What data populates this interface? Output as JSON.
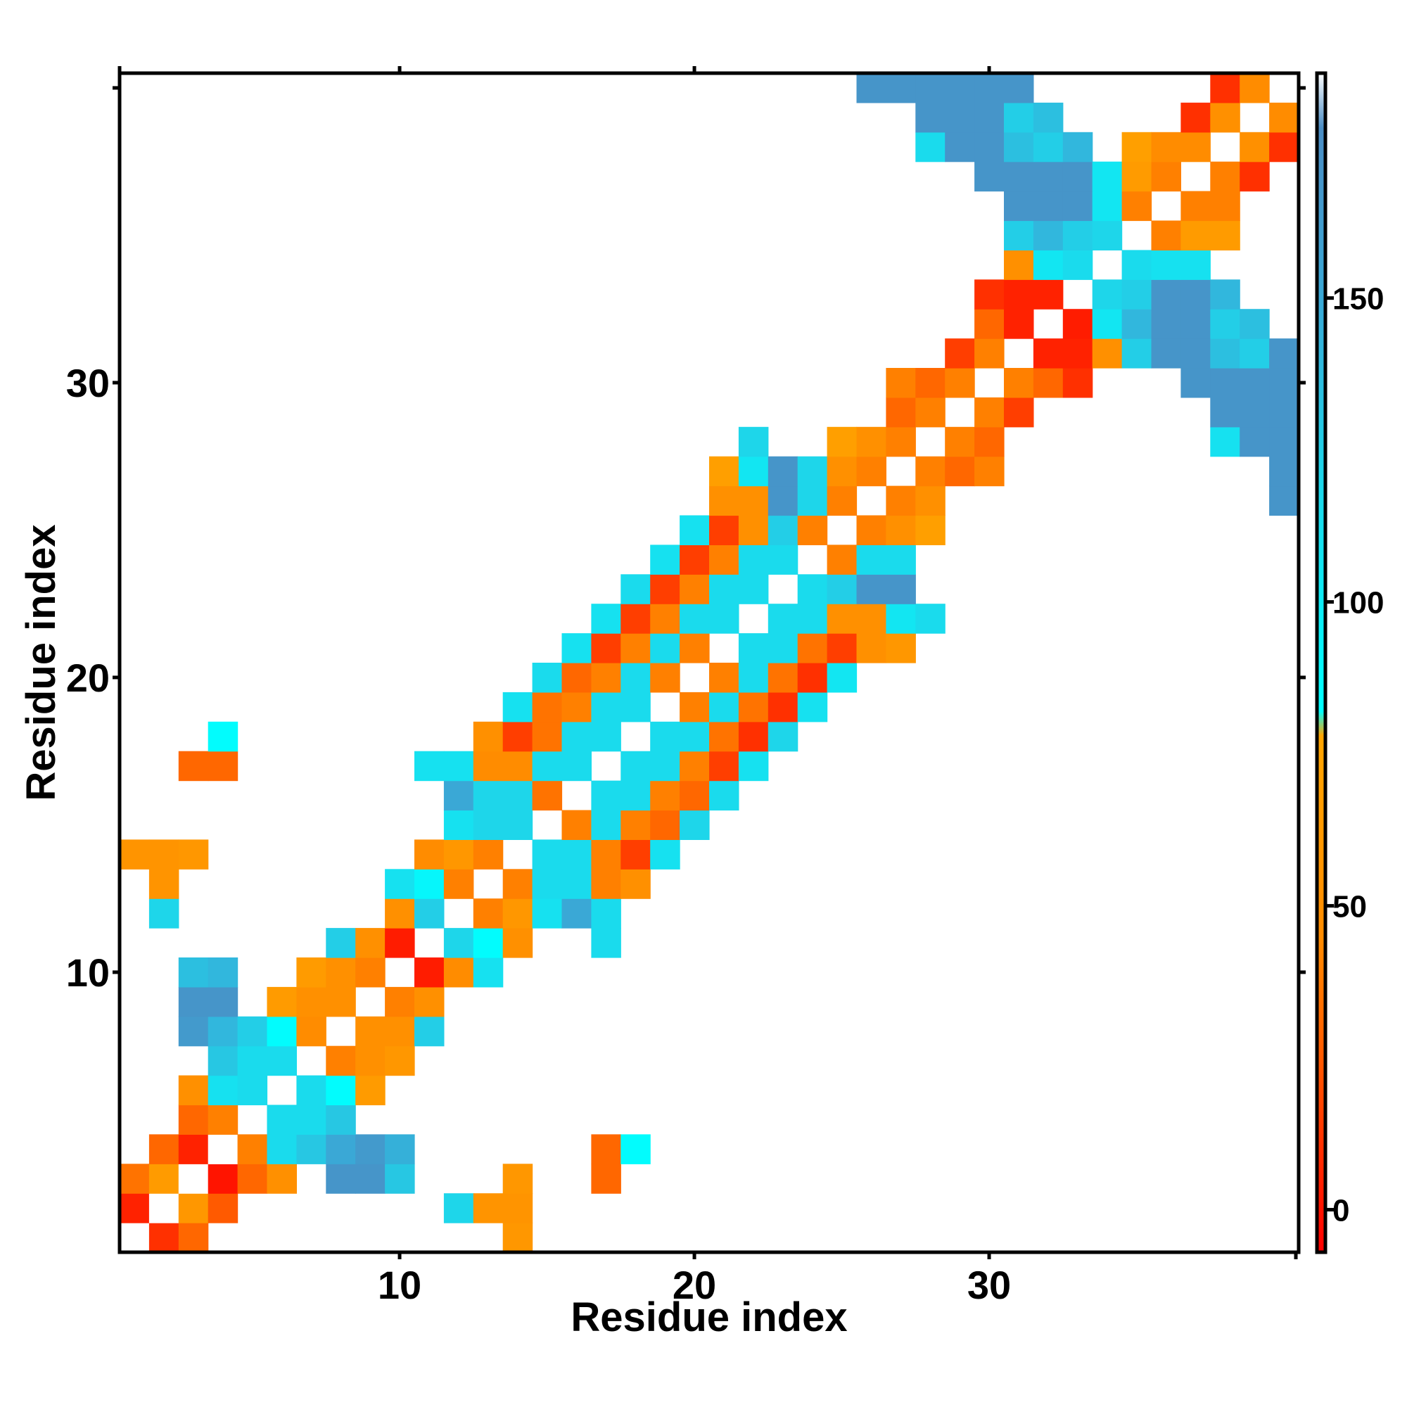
{
  "chart_data": {
    "type": "heatmap",
    "title": "",
    "xlabel": "Residue index",
    "ylabel": "Residue index",
    "xlim": [
      0.5,
      40.5
    ],
    "ylim": [
      0.5,
      40.5
    ],
    "x_ticks": [
      10,
      20,
      30
    ],
    "y_ticks": [
      10,
      20,
      30
    ],
    "colorbar": {
      "ticks": [
        0,
        50,
        100,
        150
      ],
      "range": [
        -7,
        187
      ],
      "stops": [
        {
          "value": -7,
          "color": "#ff0000"
        },
        {
          "value": 25,
          "color": "#ff5a00"
        },
        {
          "value": 45,
          "color": "#ff8c00"
        },
        {
          "value": 78,
          "color": "#ffa500"
        },
        {
          "value": 82,
          "color": "#00ffff"
        },
        {
          "value": 120,
          "color": "#1ed6ea"
        },
        {
          "value": 150,
          "color": "#3aa8d6"
        },
        {
          "value": 178,
          "color": "#4b8dc4"
        },
        {
          "value": 187,
          "color": "#ffffff"
        }
      ]
    },
    "empty_value_note": "",
    "cells": [
      [
        1,
        1,
        -1
      ],
      [
        2,
        1,
        10
      ],
      [
        3,
        1,
        30
      ],
      [
        14,
        1,
        60
      ],
      [
        1,
        2,
        5
      ],
      [
        2,
        2,
        -1
      ],
      [
        3,
        2,
        60
      ],
      [
        4,
        2,
        25
      ],
      [
        12,
        2,
        120
      ],
      [
        13,
        2,
        55
      ],
      [
        14,
        2,
        55
      ],
      [
        1,
        3,
        35
      ],
      [
        2,
        3,
        65
      ],
      [
        3,
        3,
        -1
      ],
      [
        4,
        3,
        0
      ],
      [
        5,
        3,
        30
      ],
      [
        6,
        3,
        50
      ],
      [
        8,
        3,
        170
      ],
      [
        9,
        3,
        170
      ],
      [
        10,
        3,
        130
      ],
      [
        14,
        3,
        60
      ],
      [
        17,
        3,
        30
      ],
      [
        2,
        4,
        30
      ],
      [
        3,
        4,
        5
      ],
      [
        4,
        4,
        -1
      ],
      [
        5,
        4,
        40
      ],
      [
        6,
        4,
        115
      ],
      [
        7,
        4,
        130
      ],
      [
        8,
        4,
        150
      ],
      [
        9,
        4,
        165
      ],
      [
        10,
        4,
        145
      ],
      [
        17,
        4,
        30
      ],
      [
        18,
        4,
        85
      ],
      [
        3,
        5,
        30
      ],
      [
        4,
        5,
        40
      ],
      [
        6,
        5,
        115
      ],
      [
        7,
        5,
        115
      ],
      [
        8,
        5,
        130
      ],
      [
        3,
        6,
        50
      ],
      [
        4,
        6,
        110
      ],
      [
        5,
        6,
        115
      ],
      [
        7,
        6,
        115
      ],
      [
        8,
        6,
        85
      ],
      [
        9,
        6,
        65
      ],
      [
        4,
        7,
        130
      ],
      [
        5,
        7,
        115
      ],
      [
        6,
        7,
        115
      ],
      [
        8,
        7,
        40
      ],
      [
        9,
        7,
        50
      ],
      [
        10,
        7,
        60
      ],
      [
        3,
        8,
        165
      ],
      [
        4,
        8,
        140
      ],
      [
        5,
        8,
        125
      ],
      [
        6,
        8,
        85
      ],
      [
        7,
        8,
        45
      ],
      [
        9,
        8,
        50
      ],
      [
        10,
        8,
        50
      ],
      [
        11,
        8,
        125
      ],
      [
        3,
        9,
        170
      ],
      [
        4,
        9,
        170
      ],
      [
        6,
        9,
        65
      ],
      [
        7,
        9,
        50
      ],
      [
        8,
        9,
        50
      ],
      [
        10,
        9,
        40
      ],
      [
        11,
        9,
        50
      ],
      [
        3,
        10,
        135
      ],
      [
        4,
        10,
        140
      ],
      [
        7,
        10,
        65
      ],
      [
        8,
        10,
        50
      ],
      [
        9,
        10,
        40
      ],
      [
        11,
        10,
        3
      ],
      [
        12,
        10,
        45
      ],
      [
        13,
        10,
        110
      ],
      [
        8,
        11,
        125
      ],
      [
        9,
        11,
        50
      ],
      [
        10,
        11,
        3
      ],
      [
        12,
        11,
        120
      ],
      [
        13,
        11,
        85
      ],
      [
        14,
        11,
        50
      ],
      [
        17,
        11,
        115
      ],
      [
        2,
        12,
        120
      ],
      [
        10,
        12,
        50
      ],
      [
        11,
        12,
        125
      ],
      [
        13,
        12,
        40
      ],
      [
        14,
        12,
        60
      ],
      [
        15,
        12,
        110
      ],
      [
        16,
        12,
        150
      ],
      [
        17,
        12,
        115
      ],
      [
        2,
        13,
        55
      ],
      [
        10,
        13,
        110
      ],
      [
        11,
        13,
        90
      ],
      [
        12,
        13,
        40
      ],
      [
        14,
        13,
        40
      ],
      [
        15,
        13,
        115
      ],
      [
        16,
        13,
        115
      ],
      [
        17,
        13,
        40
      ],
      [
        18,
        13,
        50
      ],
      [
        1,
        14,
        55
      ],
      [
        2,
        14,
        55
      ],
      [
        3,
        14,
        60
      ],
      [
        11,
        14,
        45
      ],
      [
        12,
        14,
        60
      ],
      [
        13,
        14,
        40
      ],
      [
        15,
        14,
        115
      ],
      [
        16,
        14,
        115
      ],
      [
        17,
        14,
        40
      ],
      [
        18,
        14,
        15
      ],
      [
        19,
        14,
        110
      ],
      [
        12,
        15,
        110
      ],
      [
        13,
        15,
        120
      ],
      [
        14,
        15,
        120
      ],
      [
        16,
        15,
        40
      ],
      [
        17,
        15,
        115
      ],
      [
        18,
        15,
        40
      ],
      [
        19,
        15,
        30
      ],
      [
        20,
        15,
        120
      ],
      [
        12,
        16,
        150
      ],
      [
        13,
        16,
        120
      ],
      [
        14,
        16,
        120
      ],
      [
        15,
        16,
        35
      ],
      [
        17,
        16,
        115
      ],
      [
        18,
        16,
        115
      ],
      [
        19,
        16,
        40
      ],
      [
        20,
        16,
        30
      ],
      [
        21,
        16,
        115
      ],
      [
        3,
        17,
        30
      ],
      [
        4,
        17,
        30
      ],
      [
        11,
        17,
        110
      ],
      [
        12,
        17,
        110
      ],
      [
        13,
        17,
        45
      ],
      [
        14,
        17,
        45
      ],
      [
        15,
        17,
        115
      ],
      [
        16,
        17,
        115
      ],
      [
        18,
        17,
        115
      ],
      [
        19,
        17,
        115
      ],
      [
        20,
        17,
        40
      ],
      [
        21,
        17,
        15
      ],
      [
        22,
        17,
        110
      ],
      [
        4,
        18,
        85
      ],
      [
        13,
        18,
        50
      ],
      [
        14,
        18,
        15
      ],
      [
        15,
        18,
        35
      ],
      [
        16,
        18,
        115
      ],
      [
        17,
        18,
        115
      ],
      [
        19,
        18,
        115
      ],
      [
        20,
        18,
        115
      ],
      [
        21,
        18,
        35
      ],
      [
        22,
        18,
        10
      ],
      [
        23,
        18,
        120
      ],
      [
        14,
        19,
        110
      ],
      [
        15,
        19,
        35
      ],
      [
        16,
        19,
        40
      ],
      [
        17,
        19,
        115
      ],
      [
        18,
        19,
        115
      ],
      [
        20,
        19,
        40
      ],
      [
        21,
        19,
        115
      ],
      [
        22,
        19,
        35
      ],
      [
        23,
        19,
        10
      ],
      [
        24,
        19,
        110
      ],
      [
        15,
        20,
        115
      ],
      [
        16,
        20,
        30
      ],
      [
        17,
        20,
        40
      ],
      [
        18,
        20,
        115
      ],
      [
        19,
        20,
        40
      ],
      [
        21,
        20,
        40
      ],
      [
        22,
        20,
        115
      ],
      [
        23,
        20,
        35
      ],
      [
        24,
        20,
        10
      ],
      [
        25,
        20,
        105
      ],
      [
        16,
        21,
        110
      ],
      [
        17,
        21,
        15
      ],
      [
        18,
        21,
        40
      ],
      [
        19,
        21,
        115
      ],
      [
        20,
        21,
        40
      ],
      [
        22,
        21,
        115
      ],
      [
        23,
        21,
        115
      ],
      [
        24,
        21,
        35
      ],
      [
        25,
        21,
        15
      ],
      [
        26,
        21,
        50
      ],
      [
        27,
        21,
        60
      ],
      [
        17,
        22,
        110
      ],
      [
        18,
        22,
        15
      ],
      [
        19,
        22,
        40
      ],
      [
        20,
        22,
        115
      ],
      [
        21,
        22,
        115
      ],
      [
        23,
        22,
        115
      ],
      [
        24,
        22,
        115
      ],
      [
        25,
        22,
        50
      ],
      [
        26,
        22,
        50
      ],
      [
        27,
        22,
        105
      ],
      [
        28,
        22,
        115
      ],
      [
        18,
        23,
        115
      ],
      [
        19,
        23,
        15
      ],
      [
        20,
        23,
        40
      ],
      [
        21,
        23,
        115
      ],
      [
        22,
        23,
        115
      ],
      [
        24,
        23,
        115
      ],
      [
        25,
        23,
        125
      ],
      [
        26,
        23,
        170
      ],
      [
        27,
        23,
        170
      ],
      [
        19,
        24,
        110
      ],
      [
        20,
        24,
        15
      ],
      [
        21,
        24,
        40
      ],
      [
        22,
        24,
        115
      ],
      [
        23,
        24,
        115
      ],
      [
        25,
        24,
        40
      ],
      [
        26,
        24,
        115
      ],
      [
        27,
        24,
        115
      ],
      [
        20,
        25,
        110
      ],
      [
        21,
        25,
        15
      ],
      [
        22,
        25,
        50
      ],
      [
        23,
        25,
        125
      ],
      [
        24,
        25,
        40
      ],
      [
        26,
        25,
        40
      ],
      [
        27,
        25,
        50
      ],
      [
        28,
        25,
        70
      ],
      [
        21,
        26,
        50
      ],
      [
        22,
        26,
        50
      ],
      [
        23,
        26,
        170
      ],
      [
        24,
        26,
        120
      ],
      [
        25,
        26,
        40
      ],
      [
        27,
        26,
        40
      ],
      [
        28,
        26,
        50
      ],
      [
        40,
        26,
        170
      ],
      [
        21,
        27,
        70
      ],
      [
        22,
        27,
        105
      ],
      [
        23,
        27,
        170
      ],
      [
        24,
        27,
        120
      ],
      [
        25,
        27,
        50
      ],
      [
        26,
        27,
        40
      ],
      [
        28,
        27,
        40
      ],
      [
        29,
        27,
        30
      ],
      [
        30,
        27,
        40
      ],
      [
        40,
        27,
        170
      ],
      [
        22,
        28,
        120
      ],
      [
        25,
        28,
        70
      ],
      [
        26,
        28,
        50
      ],
      [
        27,
        28,
        40
      ],
      [
        29,
        28,
        40
      ],
      [
        30,
        28,
        30
      ],
      [
        38,
        28,
        110
      ],
      [
        39,
        28,
        170
      ],
      [
        40,
        28,
        170
      ],
      [
        27,
        29,
        30
      ],
      [
        28,
        29,
        40
      ],
      [
        30,
        29,
        40
      ],
      [
        31,
        29,
        15
      ],
      [
        38,
        29,
        170
      ],
      [
        39,
        29,
        170
      ],
      [
        40,
        29,
        170
      ],
      [
        27,
        30,
        40
      ],
      [
        28,
        30,
        30
      ],
      [
        29,
        30,
        40
      ],
      [
        31,
        30,
        40
      ],
      [
        32,
        30,
        30
      ],
      [
        33,
        30,
        10
      ],
      [
        37,
        30,
        170
      ],
      [
        38,
        30,
        170
      ],
      [
        39,
        30,
        170
      ],
      [
        40,
        30,
        170
      ],
      [
        29,
        31,
        15
      ],
      [
        30,
        31,
        40
      ],
      [
        32,
        31,
        5
      ],
      [
        33,
        31,
        5
      ],
      [
        34,
        31,
        50
      ],
      [
        35,
        31,
        125
      ],
      [
        36,
        31,
        170
      ],
      [
        37,
        31,
        170
      ],
      [
        38,
        31,
        135
      ],
      [
        39,
        31,
        125
      ],
      [
        40,
        31,
        170
      ],
      [
        30,
        32,
        30
      ],
      [
        31,
        32,
        5
      ],
      [
        33,
        32,
        3
      ],
      [
        34,
        32,
        105
      ],
      [
        35,
        32,
        140
      ],
      [
        36,
        32,
        170
      ],
      [
        37,
        32,
        170
      ],
      [
        38,
        32,
        125
      ],
      [
        39,
        32,
        135
      ],
      [
        30,
        33,
        10
      ],
      [
        31,
        33,
        5
      ],
      [
        32,
        33,
        5
      ],
      [
        34,
        33,
        120
      ],
      [
        35,
        33,
        125
      ],
      [
        36,
        33,
        170
      ],
      [
        37,
        33,
        170
      ],
      [
        38,
        33,
        140
      ],
      [
        31,
        34,
        50
      ],
      [
        32,
        34,
        105
      ],
      [
        33,
        34,
        115
      ],
      [
        35,
        34,
        115
      ],
      [
        36,
        34,
        110
      ],
      [
        37,
        34,
        110
      ],
      [
        31,
        35,
        125
      ],
      [
        32,
        35,
        140
      ],
      [
        33,
        35,
        125
      ],
      [
        34,
        35,
        120
      ],
      [
        36,
        35,
        40
      ],
      [
        37,
        35,
        65
      ],
      [
        38,
        35,
        65
      ],
      [
        31,
        36,
        170
      ],
      [
        32,
        36,
        170
      ],
      [
        33,
        36,
        170
      ],
      [
        34,
        36,
        105
      ],
      [
        35,
        36,
        40
      ],
      [
        37,
        36,
        40
      ],
      [
        38,
        36,
        40
      ],
      [
        30,
        37,
        170
      ],
      [
        31,
        37,
        170
      ],
      [
        32,
        37,
        170
      ],
      [
        33,
        37,
        170
      ],
      [
        34,
        37,
        105
      ],
      [
        35,
        37,
        65
      ],
      [
        36,
        37,
        40
      ],
      [
        38,
        37,
        40
      ],
      [
        39,
        37,
        10
      ],
      [
        28,
        38,
        115
      ],
      [
        29,
        38,
        170
      ],
      [
        30,
        38,
        170
      ],
      [
        31,
        38,
        135
      ],
      [
        32,
        38,
        125
      ],
      [
        33,
        38,
        140
      ],
      [
        35,
        38,
        70
      ],
      [
        36,
        38,
        45
      ],
      [
        37,
        38,
        45
      ],
      [
        39,
        38,
        50
      ],
      [
        40,
        38,
        10
      ],
      [
        28,
        39,
        170
      ],
      [
        29,
        39,
        170
      ],
      [
        30,
        39,
        170
      ],
      [
        31,
        39,
        125
      ],
      [
        32,
        39,
        135
      ],
      [
        37,
        39,
        10
      ],
      [
        38,
        39,
        50
      ],
      [
        40,
        39,
        45
      ],
      [
        26,
        40,
        170
      ],
      [
        27,
        40,
        170
      ],
      [
        28,
        40,
        170
      ],
      [
        29,
        40,
        170
      ],
      [
        30,
        40,
        170
      ],
      [
        31,
        40,
        170
      ],
      [
        38,
        40,
        10
      ],
      [
        39,
        40,
        45
      ]
    ]
  }
}
